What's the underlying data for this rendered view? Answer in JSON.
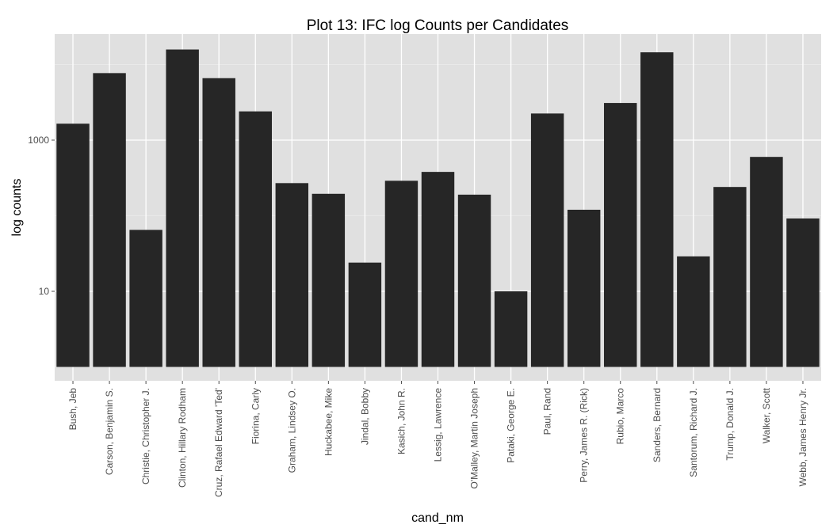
{
  "chart_data": {
    "type": "bar",
    "title": "Plot 13: IFC log Counts per Candidates",
    "xlabel": "cand_nm",
    "ylabel": "log counts",
    "y_scale": "log10",
    "ylim": [
      1,
      20000
    ],
    "y_ticks": [
      10,
      1000
    ],
    "y_tick_labels": [
      "10",
      "1000"
    ],
    "grid": true,
    "bar_color": "#262626",
    "panel_color": "#e0e0e0",
    "grid_color": "#ffffff",
    "categories": [
      "Bush, Jeb",
      "Carson, Benjamin S.",
      "Christie, Christopher J.",
      "Clinton, Hillary Rodham",
      "Cruz, Rafael Edward 'Ted'",
      "Fiorina, Carly",
      "Graham, Lindsey O.",
      "Huckabee, Mike",
      "Jindal, Bobby",
      "Kasich, John R.",
      "Lessig, Lawrence",
      "O'Malley, Martin Joseph",
      "Pataki, George E.",
      "Paul, Rand",
      "Perry, James R. (Rick)",
      "Rubio, Marco",
      "Sanders, Bernard",
      "Santorum, Richard J.",
      "Trump, Donald J.",
      "Walker, Scott",
      "Webb, James Henry Jr."
    ],
    "values": [
      1650,
      7700,
      65,
      15800,
      6600,
      2400,
      270,
      195,
      24,
      290,
      380,
      190,
      10,
      2250,
      120,
      3100,
      14500,
      29,
      240,
      600,
      92
    ]
  }
}
